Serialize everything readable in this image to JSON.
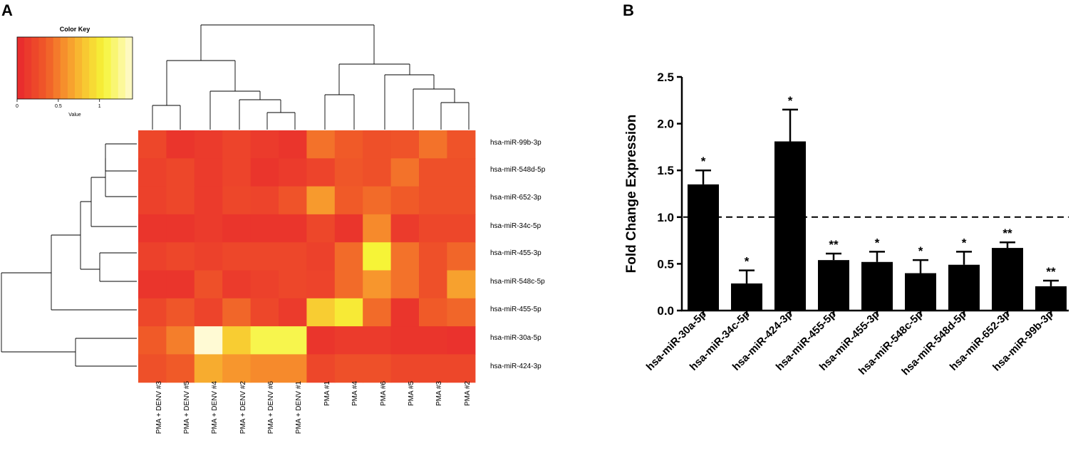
{
  "panels": {
    "a_label": "A",
    "b_label": "B"
  },
  "chart_data": [
    {
      "type": "heatmap",
      "panel": "A",
      "color_key": {
        "title": "Color Key",
        "xlabel": "Value",
        "range": [
          0,
          1.4
        ],
        "ticks": [
          0,
          0.5,
          1
        ],
        "tick_labels": [
          "0",
          "0.5",
          "1"
        ]
      },
      "columns": [
        "PMA + DENV #3",
        "PMA + DENV #5",
        "PMA + DENV #4",
        "PMA + DENV #2",
        "PMA + DENV #6",
        "PMA + DENV #1",
        "PMA #1",
        "PMA #4",
        "PMA #6",
        "PMA #5",
        "PMA #3",
        "PMA #2"
      ],
      "rows": [
        "hsa-miR-99b-3p",
        "hsa-miR-548d-5p",
        "hsa-miR-652-3p",
        "hsa-miR-34c-5p",
        "hsa-miR-455-3p",
        "hsa-miR-548c-5p",
        "hsa-miR-455-5p",
        "hsa-miR-30a-5p",
        "hsa-miR-424-3p"
      ],
      "values": [
        [
          0.22,
          0.1,
          0.14,
          0.2,
          0.14,
          0.1,
          0.45,
          0.35,
          0.28,
          0.3,
          0.45,
          0.3
        ],
        [
          0.18,
          0.22,
          0.14,
          0.2,
          0.1,
          0.14,
          0.2,
          0.32,
          0.28,
          0.45,
          0.28,
          0.28
        ],
        [
          0.18,
          0.22,
          0.14,
          0.22,
          0.2,
          0.3,
          0.62,
          0.35,
          0.42,
          0.35,
          0.28,
          0.28
        ],
        [
          0.1,
          0.1,
          0.14,
          0.1,
          0.1,
          0.1,
          0.22,
          0.1,
          0.55,
          0.14,
          0.22,
          0.22
        ],
        [
          0.18,
          0.22,
          0.18,
          0.22,
          0.22,
          0.22,
          0.18,
          0.42,
          1.05,
          0.45,
          0.28,
          0.4
        ],
        [
          0.1,
          0.1,
          0.28,
          0.14,
          0.18,
          0.22,
          0.2,
          0.42,
          0.6,
          0.45,
          0.28,
          0.65
        ],
        [
          0.22,
          0.32,
          0.2,
          0.4,
          0.22,
          0.14,
          0.85,
          1.0,
          0.42,
          0.1,
          0.35,
          0.4
        ],
        [
          0.35,
          0.5,
          1.4,
          0.85,
          1.1,
          1.1,
          0.1,
          0.14,
          0.14,
          0.1,
          0.1,
          0.08
        ],
        [
          0.28,
          0.35,
          0.7,
          0.6,
          0.55,
          0.55,
          0.22,
          0.28,
          0.28,
          0.22,
          0.22,
          0.22
        ]
      ]
    },
    {
      "type": "bar",
      "panel": "B",
      "ylabel": "Fold Change Expression",
      "ylim": [
        0,
        2.5
      ],
      "yticks": [
        0,
        0.5,
        1,
        1.5,
        2,
        2.5
      ],
      "ytick_labels": [
        "0.0",
        "0.5",
        "1.0",
        "1.5",
        "2.0",
        "2.5"
      ],
      "reference_line": 1.0,
      "categories": [
        "hsa-miR-30a-5p",
        "hsa-miR-34c-5p",
        "hsa-miR-424-3p",
        "hsa-miR-455-5p",
        "hsa-miR-455-3p",
        "hsa-miR-548c-5p",
        "hsa-miR-548d-5p",
        "hsa-miR-652-3p",
        "hsa-miR-99b-3p"
      ],
      "values": [
        1.35,
        0.29,
        1.81,
        0.54,
        0.52,
        0.4,
        0.49,
        0.67,
        0.26
      ],
      "errors": [
        0.15,
        0.14,
        0.34,
        0.07,
        0.11,
        0.14,
        0.14,
        0.06,
        0.06
      ],
      "significance": [
        "*",
        "*",
        "*",
        "**",
        "*",
        "*",
        "*",
        "**",
        "**"
      ]
    }
  ]
}
